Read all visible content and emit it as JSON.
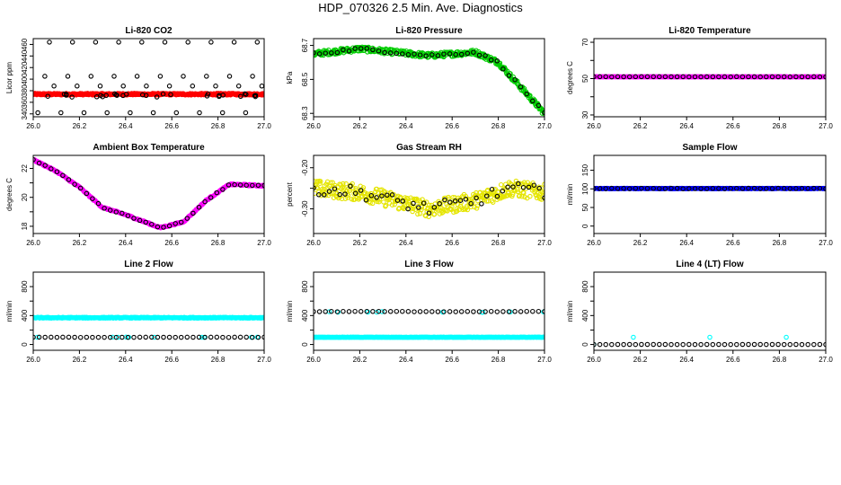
{
  "title": "HDP_070326  2.5 Min. Ave. Diagnostics",
  "chart_data": [
    {
      "id": "co2",
      "type": "scatter",
      "title": "Li-820 CO2",
      "ylabel": "Licor ppm",
      "xlim": [
        26.0,
        27.0
      ],
      "ylim": [
        335,
        470
      ],
      "xticks": [
        26.0,
        26.2,
        26.4,
        26.6,
        26.8,
        27.0
      ],
      "xtick_labels": [
        "26.0",
        "26.2",
        "26.4",
        "26.6",
        "26.8",
        "27.0"
      ],
      "yticks": [
        340,
        360,
        380,
        400,
        420,
        440,
        460
      ],
      "ytick_labels": [
        "340",
        "360",
        "380",
        "400",
        "420",
        "440",
        "460"
      ],
      "series": [
        {
          "name": "red",
          "color": "#ff0000",
          "gen": "band",
          "base": 374,
          "noise": 1.5,
          "n": 400
        },
        {
          "name": "black-low",
          "color": "#000000",
          "gen": "sparse",
          "base": 372,
          "noise": 3,
          "n": 30
        },
        {
          "name": "black-outliers",
          "color": "#000000",
          "x": [
            26.02,
            26.07,
            26.12,
            26.17,
            26.22,
            26.27,
            26.32,
            26.37,
            26.42,
            26.47,
            26.52,
            26.57,
            26.62,
            26.67,
            26.72,
            26.77,
            26.82,
            26.87,
            26.92,
            26.97,
            26.05,
            26.15,
            26.25,
            26.35,
            26.45,
            26.55,
            26.65,
            26.75,
            26.85,
            26.95,
            26.09,
            26.19,
            26.29,
            26.39,
            26.49,
            26.59,
            26.69,
            26.79,
            26.89,
            26.99
          ],
          "y": [
            342,
            464,
            342,
            464,
            342,
            464,
            342,
            464,
            342,
            464,
            342,
            464,
            342,
            464,
            342,
            464,
            342,
            464,
            342,
            464,
            405,
            405,
            405,
            405,
            405,
            405,
            405,
            405,
            405,
            405,
            388,
            388,
            388,
            388,
            388,
            388,
            388,
            388,
            388,
            388
          ]
        }
      ]
    },
    {
      "id": "pressure",
      "type": "scatter",
      "title": "Li-820 Pressure",
      "ylabel": "kPa",
      "xlim": [
        26.0,
        27.0
      ],
      "ylim": [
        68.28,
        68.74
      ],
      "xticks": [
        26.0,
        26.2,
        26.4,
        26.6,
        26.8,
        27.0
      ],
      "xtick_labels": [
        "26.0",
        "26.2",
        "26.4",
        "26.6",
        "26.8",
        "27.0"
      ],
      "yticks": [
        68.3,
        68.5,
        68.7
      ],
      "ytick_labels": [
        "68.3",
        "68.5",
        "68.7"
      ],
      "series": [
        {
          "name": "green",
          "color": "#00cc00",
          "gen": "curve",
          "curve": [
            [
              26.0,
              68.65
            ],
            [
              26.2,
              68.68
            ],
            [
              26.5,
              68.64
            ],
            [
              26.7,
              68.66
            ],
            [
              26.8,
              68.6
            ],
            [
              26.9,
              68.45
            ],
            [
              27.0,
              68.3
            ]
          ],
          "noise": 0.015,
          "n": 400
        },
        {
          "name": "black",
          "color": "#000000",
          "gen": "curve",
          "curve": [
            [
              26.0,
              68.65
            ],
            [
              26.2,
              68.68
            ],
            [
              26.5,
              68.64
            ],
            [
              26.7,
              68.66
            ],
            [
              26.8,
              68.6
            ],
            [
              26.9,
              68.45
            ],
            [
              27.0,
              68.3
            ]
          ],
          "noise": 0.008,
          "n": 40
        }
      ]
    },
    {
      "id": "temperature",
      "type": "scatter",
      "title": "Li-820 Temperature",
      "ylabel": "degrees C",
      "xlim": [
        26.0,
        27.0
      ],
      "ylim": [
        29,
        72
      ],
      "xticks": [
        26.0,
        26.2,
        26.4,
        26.6,
        26.8,
        27.0
      ],
      "xtick_labels": [
        "26.0",
        "26.2",
        "26.4",
        "26.6",
        "26.8",
        "27.0"
      ],
      "yticks": [
        30,
        40,
        50,
        60,
        70
      ],
      "ytick_labels": [
        "30",
        "",
        "50",
        "",
        "70"
      ],
      "series": [
        {
          "name": "magenta",
          "color": "#ff00ff",
          "gen": "band",
          "base": 51,
          "noise": 0.05,
          "n": 400
        },
        {
          "name": "black",
          "color": "#000000",
          "gen": "band",
          "base": 51,
          "noise": 0.05,
          "n": 40
        }
      ]
    },
    {
      "id": "box-temp",
      "type": "scatter",
      "title": "Ambient Box Temperature",
      "ylabel": "degrees C",
      "xlim": [
        26.0,
        27.0
      ],
      "ylim": [
        17.5,
        22.9
      ],
      "xticks": [
        26.0,
        26.2,
        26.4,
        26.6,
        26.8,
        27.0
      ],
      "xtick_labels": [
        "26.0",
        "26.2",
        "26.4",
        "26.6",
        "26.8",
        "27.0"
      ],
      "yticks": [
        18,
        19,
        20,
        21,
        22
      ],
      "ytick_labels": [
        "18",
        "",
        "20",
        "",
        "22"
      ],
      "series": [
        {
          "name": "magenta",
          "color": "#ff00ff",
          "gen": "curve",
          "curve": [
            [
              26.0,
              22.6
            ],
            [
              26.1,
              21.8
            ],
            [
              26.2,
              20.7
            ],
            [
              26.3,
              19.3
            ],
            [
              26.4,
              18.8
            ],
            [
              26.55,
              17.9
            ],
            [
              26.65,
              18.3
            ],
            [
              26.75,
              19.8
            ],
            [
              26.85,
              20.9
            ],
            [
              27.0,
              20.8
            ]
          ],
          "noise": 0.05,
          "n": 300
        },
        {
          "name": "black",
          "color": "#000000",
          "gen": "curve",
          "curve": [
            [
              26.0,
              22.6
            ],
            [
              26.1,
              21.8
            ],
            [
              26.2,
              20.7
            ],
            [
              26.3,
              19.3
            ],
            [
              26.4,
              18.8
            ],
            [
              26.55,
              17.9
            ],
            [
              26.65,
              18.3
            ],
            [
              26.75,
              19.8
            ],
            [
              26.85,
              20.9
            ],
            [
              27.0,
              20.8
            ]
          ],
          "noise": 0.03,
          "n": 40
        }
      ]
    },
    {
      "id": "rh",
      "type": "scatter",
      "title": "Gas Stream RH",
      "ylabel": "percent",
      "xlim": [
        26.0,
        27.0
      ],
      "ylim": [
        -0.36,
        -0.17
      ],
      "xticks": [
        26.0,
        26.2,
        26.4,
        26.6,
        26.8,
        27.0
      ],
      "xtick_labels": [
        "26.0",
        "26.2",
        "26.4",
        "26.6",
        "26.8",
        "27.0"
      ],
      "yticks": [
        -0.3,
        -0.25,
        -0.2
      ],
      "ytick_labels": [
        "-0.30",
        "",
        "-0.20"
      ],
      "series": [
        {
          "name": "yellow",
          "color": "#e5e500",
          "gen": "curve",
          "curve": [
            [
              26.0,
              -0.25
            ],
            [
              26.2,
              -0.26
            ],
            [
              26.5,
              -0.3
            ],
            [
              26.7,
              -0.28
            ],
            [
              26.85,
              -0.25
            ],
            [
              27.0,
              -0.26
            ]
          ],
          "noise": 0.02,
          "n": 400
        },
        {
          "name": "black",
          "color": "#000000",
          "gen": "curve",
          "curve": [
            [
              26.0,
              -0.25
            ],
            [
              26.2,
              -0.26
            ],
            [
              26.5,
              -0.3
            ],
            [
              26.7,
              -0.28
            ],
            [
              26.85,
              -0.25
            ],
            [
              27.0,
              -0.26
            ]
          ],
          "noise": 0.015,
          "n": 45
        }
      ]
    },
    {
      "id": "sample-flow",
      "type": "scatter",
      "title": "Sample Flow",
      "ylabel": "ml/min",
      "xlim": [
        26.0,
        27.0
      ],
      "ylim": [
        -20,
        190
      ],
      "xticks": [
        26.0,
        26.2,
        26.4,
        26.6,
        26.8,
        27.0
      ],
      "xtick_labels": [
        "26.0",
        "26.2",
        "26.4",
        "26.6",
        "26.8",
        "27.0"
      ],
      "yticks": [
        0,
        50,
        100,
        150
      ],
      "ytick_labels": [
        "0",
        "50",
        "100",
        "150"
      ],
      "series": [
        {
          "name": "blue",
          "color": "#0000ff",
          "gen": "band",
          "base": 101,
          "noise": 0.8,
          "n": 400
        },
        {
          "name": "black",
          "color": "#000000",
          "gen": "band",
          "base": 101,
          "noise": 0.8,
          "n": 40
        }
      ]
    },
    {
      "id": "line2",
      "type": "scatter",
      "title": "Line 2 Flow",
      "ylabel": "ml/min",
      "xlim": [
        26.0,
        27.0
      ],
      "ylim": [
        -80,
        1000
      ],
      "xticks": [
        26.0,
        26.2,
        26.4,
        26.6,
        26.8,
        27.0
      ],
      "xtick_labels": [
        "26.0",
        "26.2",
        "26.4",
        "26.6",
        "26.8",
        "27.0"
      ],
      "yticks": [
        0,
        200,
        400,
        600,
        800
      ],
      "ytick_labels": [
        "0",
        "",
        "400",
        "",
        "800"
      ],
      "series": [
        {
          "name": "cyan-high",
          "color": "#00ffff",
          "gen": "band",
          "base": 370,
          "noise": 6,
          "n": 400
        },
        {
          "name": "cyan-low",
          "color": "#00ffff",
          "gen": "sparse",
          "base": 100,
          "noise": 2,
          "n": 10
        },
        {
          "name": "black",
          "color": "#000000",
          "gen": "band",
          "base": 100,
          "noise": 2,
          "n": 40
        }
      ]
    },
    {
      "id": "line3",
      "type": "scatter",
      "title": "Line 3 Flow",
      "ylabel": "ml/min",
      "xlim": [
        26.0,
        27.0
      ],
      "ylim": [
        -80,
        1000
      ],
      "xticks": [
        26.0,
        26.2,
        26.4,
        26.6,
        26.8,
        27.0
      ],
      "xtick_labels": [
        "26.0",
        "26.2",
        "26.4",
        "26.6",
        "26.8",
        "27.0"
      ],
      "yticks": [
        0,
        200,
        400,
        600,
        800
      ],
      "ytick_labels": [
        "0",
        "",
        "400",
        "",
        "800"
      ],
      "series": [
        {
          "name": "cyan-low",
          "color": "#00ffff",
          "gen": "band",
          "base": 100,
          "noise": 2,
          "n": 400
        },
        {
          "name": "cyan-high",
          "color": "#00ffff",
          "gen": "sparse",
          "base": 450,
          "noise": 5,
          "n": 10
        },
        {
          "name": "black",
          "color": "#000000",
          "gen": "band",
          "base": 455,
          "noise": 3,
          "n": 40
        }
      ]
    },
    {
      "id": "line4",
      "type": "scatter",
      "title": "Line 4 (LT) Flow",
      "ylabel": "ml/min",
      "xlim": [
        26.0,
        27.0
      ],
      "ylim": [
        -80,
        1000
      ],
      "xticks": [
        26.0,
        26.2,
        26.4,
        26.6,
        26.8,
        27.0
      ],
      "xtick_labels": [
        "26.0",
        "26.2",
        "26.4",
        "26.6",
        "26.8",
        "27.0"
      ],
      "yticks": [
        0,
        200,
        400,
        600,
        800
      ],
      "ytick_labels": [
        "0",
        "",
        "400",
        "",
        "800"
      ],
      "series": [
        {
          "name": "cyan",
          "color": "#00ffff",
          "x": [
            26.0,
            26.17,
            26.5,
            26.83
          ],
          "y": [
            0,
            100,
            100,
            100
          ]
        },
        {
          "name": "black",
          "color": "#000000",
          "gen": "band",
          "base": 0,
          "noise": 0.5,
          "n": 40
        }
      ]
    }
  ]
}
